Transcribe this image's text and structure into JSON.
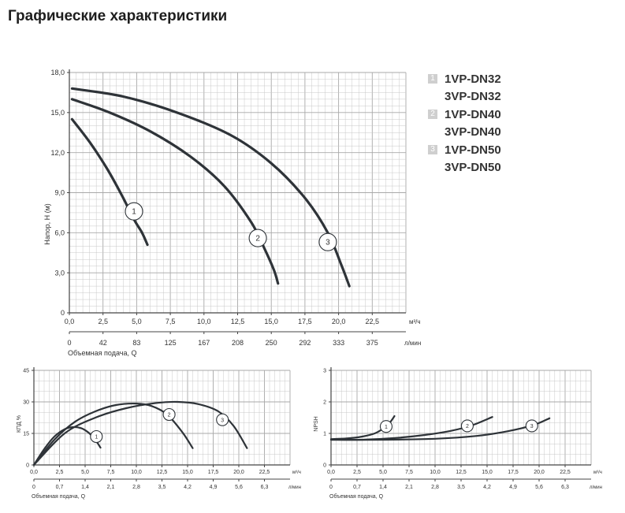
{
  "page": {
    "title": "Графические характеристики"
  },
  "legend": [
    {
      "num": "1",
      "models": [
        "1VP-DN32",
        "3VP-DN32"
      ]
    },
    {
      "num": "2",
      "models": [
        "1VP-DN40",
        "3VP-DN40"
      ]
    },
    {
      "num": "3",
      "models": [
        "1VP-DN50",
        "3VP-DN50"
      ]
    }
  ],
  "colors": {
    "curve": "#2e3338",
    "grid": "#c8c8c8",
    "grid_major": "#a8a8a8",
    "axis": "#444444",
    "legend_box": "#cfcfcf"
  },
  "chart_data": [
    {
      "id": "head",
      "type": "line",
      "title": "",
      "ylabel": "Напор, H (м)",
      "xlabel": "Объемная подача, Q",
      "x_unit": "м³/ч",
      "x2_unit": "л/мин",
      "xlim": [
        0,
        25
      ],
      "ylim": [
        0,
        18
      ],
      "x_ticks": [
        "0,0",
        "2,5",
        "5,0",
        "7,5",
        "10,0",
        "12,5",
        "15,0",
        "17,5",
        "20,0",
        "22,5"
      ],
      "x2_ticks": [
        "0",
        "42",
        "83",
        "125",
        "167",
        "208",
        "250",
        "292",
        "333",
        "375"
      ],
      "y_ticks": [
        "0",
        "3,0",
        "6,0",
        "9,0",
        "12,0",
        "15,0",
        "18,0"
      ],
      "grid": true,
      "series": [
        {
          "name": "1",
          "x": [
            0.2,
            1.5,
            2.8,
            3.9,
            4.8,
            5.4,
            5.8
          ],
          "y": [
            14.5,
            12.8,
            10.8,
            8.8,
            7.0,
            6.0,
            5.1
          ]
        },
        {
          "name": "2",
          "x": [
            0.2,
            3.0,
            6.0,
            9.0,
            11.5,
            13.5,
            14.5,
            15.2,
            15.5
          ],
          "y": [
            16.0,
            15.0,
            13.6,
            11.7,
            9.5,
            6.8,
            4.8,
            3.2,
            2.2
          ]
        },
        {
          "name": "3",
          "x": [
            0.2,
            4.0,
            8.0,
            12.0,
            15.0,
            17.5,
            19.2,
            20.2,
            20.8
          ],
          "y": [
            16.8,
            16.2,
            15.0,
            13.3,
            11.2,
            8.6,
            6.0,
            3.6,
            2.0
          ]
        }
      ],
      "markers": [
        {
          "label": "1",
          "x": 4.8,
          "y": 7.6
        },
        {
          "label": "2",
          "x": 14.0,
          "y": 5.6
        },
        {
          "label": "3",
          "x": 19.2,
          "y": 5.3
        }
      ]
    },
    {
      "id": "eff",
      "type": "line",
      "title": "",
      "ylabel": "КПД %",
      "xlabel": "Объемная подача, Q",
      "x_unit": "м³/ч",
      "x2_unit": "л/мин",
      "xlim": [
        0,
        25
      ],
      "ylim": [
        0,
        45
      ],
      "x_ticks": [
        "0,0",
        "2,5",
        "5,0",
        "7,5",
        "10,0",
        "12,5",
        "15,0",
        "17,5",
        "20,0",
        "22,5"
      ],
      "x2_ticks": [
        "0",
        "0,7",
        "1,4",
        "2,1",
        "2,8",
        "3,5",
        "4,2",
        "4,9",
        "5,6",
        "6,3"
      ],
      "y_ticks": [
        "0",
        "15",
        "30",
        "45"
      ],
      "grid": true,
      "series": [
        {
          "name": "1",
          "x": [
            0.0,
            1.0,
            2.0,
            3.0,
            3.8,
            4.6,
            5.3,
            5.8,
            6.2,
            6.5
          ],
          "y": [
            0,
            7.5,
            13.5,
            17.0,
            18.0,
            17.5,
            15.5,
            13.0,
            10.5,
            8.2
          ]
        },
        {
          "name": "2",
          "x": [
            0.0,
            2.0,
            4.0,
            6.0,
            8.0,
            10.0,
            11.5,
            13.0,
            14.5,
            15.5
          ],
          "y": [
            0,
            12.0,
            20.5,
            25.5,
            28.5,
            29.2,
            28.0,
            24.0,
            15.5,
            8.0
          ]
        },
        {
          "name": "3",
          "x": [
            0.0,
            3.0,
            6.0,
            9.0,
            12.0,
            14.0,
            16.0,
            18.0,
            19.5,
            20.8
          ],
          "y": [
            0,
            15.0,
            22.5,
            27.0,
            29.5,
            30.0,
            29.0,
            25.5,
            18.5,
            8.0
          ]
        }
      ],
      "markers": [
        {
          "label": "1",
          "x": 6.1,
          "y": 13.5
        },
        {
          "label": "2",
          "x": 13.2,
          "y": 24.0
        },
        {
          "label": "3",
          "x": 18.4,
          "y": 21.5
        }
      ]
    },
    {
      "id": "npsh",
      "type": "line",
      "title": "",
      "ylabel": "NPSH",
      "xlabel": "Объемная подача, Q",
      "x_unit": "м³/ч",
      "x2_unit": "л/мин",
      "xlim": [
        0,
        25
      ],
      "ylim": [
        0,
        3
      ],
      "x_ticks": [
        "0,0",
        "2,5",
        "5,0",
        "7,5",
        "10,0",
        "12,5",
        "15,0",
        "17,5",
        "20,0",
        "22,5"
      ],
      "x2_ticks": [
        "0",
        "0,7",
        "1,4",
        "2,1",
        "2,8",
        "3,5",
        "4,2",
        "4,9",
        "5,6",
        "6,3"
      ],
      "y_ticks": [
        "0",
        "1",
        "2",
        "3"
      ],
      "grid": true,
      "series": [
        {
          "name": "1",
          "x": [
            0.0,
            1.5,
            3.0,
            4.2,
            5.0,
            5.6,
            6.1
          ],
          "y": [
            0.82,
            0.84,
            0.9,
            1.0,
            1.15,
            1.32,
            1.55
          ]
        },
        {
          "name": "2",
          "x": [
            0.0,
            3.0,
            6.0,
            9.0,
            11.5,
            13.5,
            15.5
          ],
          "y": [
            0.8,
            0.8,
            0.85,
            0.95,
            1.08,
            1.25,
            1.52
          ]
        },
        {
          "name": "3",
          "x": [
            0.0,
            5.0,
            10.0,
            14.0,
            17.0,
            19.5,
            21.0
          ],
          "y": [
            0.8,
            0.8,
            0.83,
            0.92,
            1.07,
            1.27,
            1.48
          ]
        }
      ],
      "markers": [
        {
          "label": "1",
          "x": 5.3,
          "y": 1.22
        },
        {
          "label": "2",
          "x": 13.1,
          "y": 1.24
        },
        {
          "label": "3",
          "x": 19.3,
          "y": 1.24
        }
      ]
    }
  ]
}
